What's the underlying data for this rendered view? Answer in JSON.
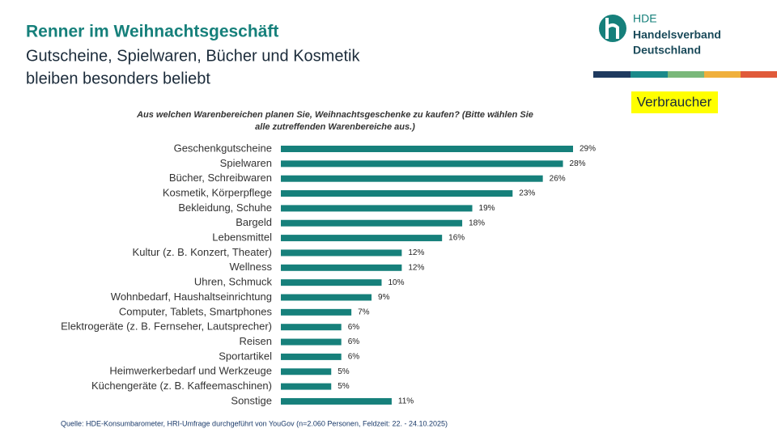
{
  "slide": {
    "title": "Renner im Weihnachtsgeschäft",
    "subtitle_lines": [
      "Gutscheine, Spielwaren, Bücher und Kosmetik",
      "bleiben besonders beliebt"
    ],
    "tag": "Verbraucher",
    "source": "Quelle: HDE-Konsumbarometer, HRI-Umfrage durchgeführt von YouGov (n=2.060 Personen, Feldzeit: 22. - 24.10.2025)"
  },
  "logo": {
    "lines": [
      "HDE",
      "Handelsverband",
      "Deutschland"
    ]
  },
  "chart_data": {
    "type": "bar",
    "orientation": "horizontal",
    "title_lines": [
      "Aus welchen Warenbereichen planen Sie, Weihnachtsgeschenke zu kaufen? (Bitte wählen Sie",
      "alle zutreffenden Warenbereiche aus.)"
    ],
    "categories": [
      "Geschenkgutscheine",
      "Spielwaren",
      "Bücher, Schreibwaren",
      "Kosmetik, Körperpflege",
      "Bekleidung, Schuhe",
      "Bargeld",
      "Lebensmittel",
      "Kultur (z. B. Konzert, Theater)",
      "Wellness",
      "Uhren, Schmuck",
      "Wohnbedarf, Haushaltseinrichtung",
      "Computer, Tablets, Smartphones",
      "Elektrogeräte (z. B. Fernseher, Lautsprecher)",
      "Reisen",
      "Sportartikel",
      "Heimwerkerbedarf und Werkzeuge",
      "Küchengeräte (z. B. Kaffeemaschinen)",
      "Sonstige"
    ],
    "values": [
      29,
      28,
      26,
      23,
      19,
      18,
      16,
      12,
      12,
      10,
      9,
      7,
      6,
      6,
      6,
      5,
      5,
      11
    ],
    "value_labels": [
      "29%",
      "28%",
      "26%",
      "23%",
      "19%",
      "18%",
      "16%",
      "12%",
      "12%",
      "10%",
      "9%",
      "7%",
      "6%",
      "6%",
      "6%",
      "5%",
      "5%",
      "11%"
    ],
    "color": "#16807b"
  }
}
